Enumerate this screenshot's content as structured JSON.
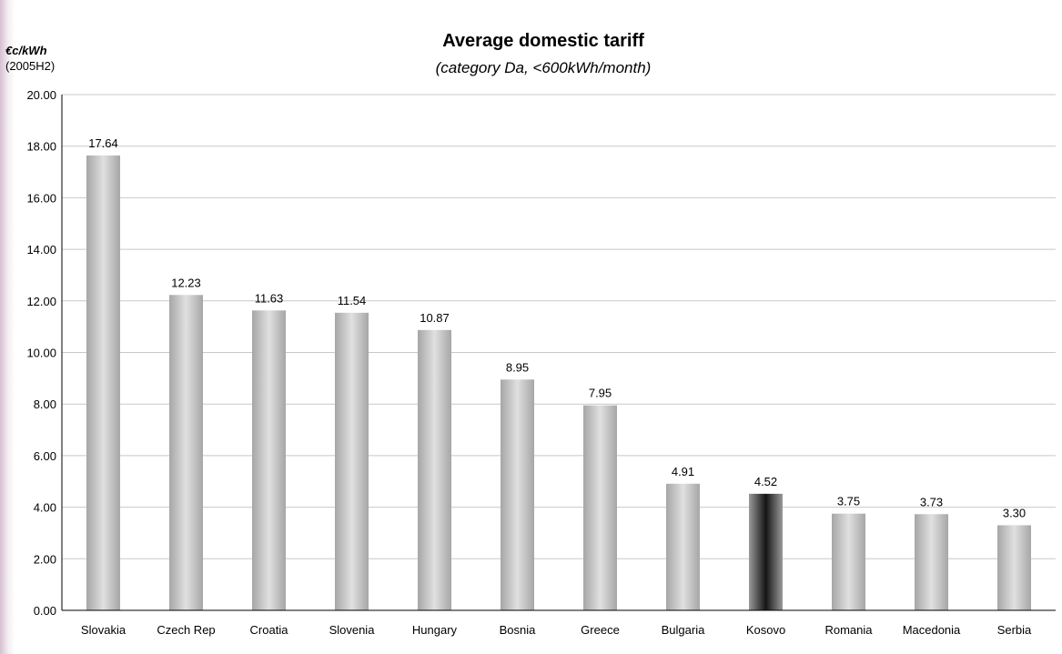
{
  "chart_data": {
    "type": "bar",
    "title": "Average domestic tariff",
    "subtitle": "(category Da, <600kWh/month)",
    "ylabel": "€c/kWh",
    "ylabel_sub": "(2005H2)",
    "xlabel": "",
    "ylim": [
      0,
      20
    ],
    "yticks": [
      "0.00",
      "2.00",
      "4.00",
      "6.00",
      "8.00",
      "10.00",
      "12.00",
      "14.00",
      "16.00",
      "18.00",
      "20.00"
    ],
    "grid": true,
    "legend": "none",
    "categories": [
      "Slovakia",
      "Czech Rep",
      "Croatia",
      "Slovenia",
      "Hungary",
      "Bosnia",
      "Greece",
      "Bulgaria",
      "Kosovo",
      "Romania",
      "Macedonia",
      "Serbia"
    ],
    "values": [
      17.64,
      12.23,
      11.63,
      11.54,
      10.87,
      8.95,
      7.95,
      4.91,
      4.52,
      3.75,
      3.73,
      3.3
    ],
    "value_labels": [
      "17.64",
      "12.23",
      "11.63",
      "11.54",
      "10.87",
      "8.95",
      "7.95",
      "4.91",
      "4.52",
      "3.75",
      "3.73",
      "3.30"
    ],
    "highlight_category": "Kosovo",
    "colors": {
      "bar": "#b4b4b4",
      "bar_highlight": "#2a2a2a",
      "grid": "#c8c8c8"
    }
  }
}
